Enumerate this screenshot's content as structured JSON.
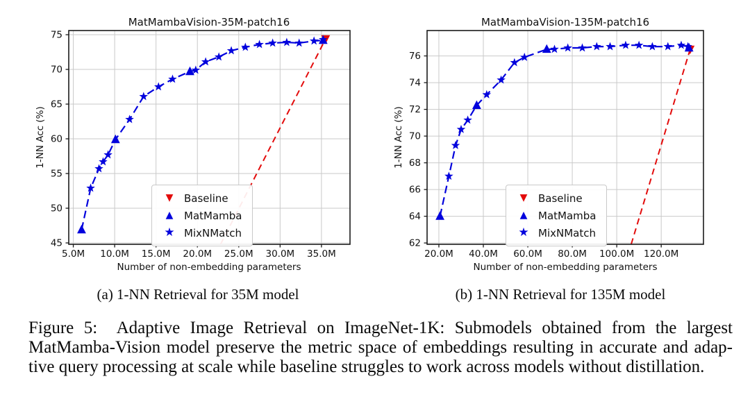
{
  "figure": {
    "subcaption_a": "(a) 1-NN Retrieval for 35M model",
    "subcaption_b": "(b) 1-NN Retrieval for 135M model",
    "caption_lines": [
      "Figure 5:  Adaptive Image Retrieval on ImageNet-1K: Submodels obtained from the largest",
      "MatMamba-Vision model preserve the metric space of embeddings resulting in accurate and adap-",
      "tive query processing at scale while baseline struggles to work across models without distillation."
    ]
  },
  "legend": {
    "items": [
      {
        "label": "Baseline",
        "marker": "triangle-down",
        "color": "red"
      },
      {
        "label": "MatMamba",
        "marker": "triangle-up",
        "color": "blue"
      },
      {
        "label": "MixNMatch",
        "marker": "star",
        "color": "blue"
      }
    ]
  },
  "colors": {
    "blue": "#0202dd",
    "red": "#e30b0b",
    "grid": "#c9c9c9",
    "spine": "#1a1a1a",
    "text": "#111111",
    "legend_border": "#c9c9c9"
  },
  "chart_data": [
    {
      "type": "scatter",
      "title": "MatMambaVision-35M-patch16",
      "xlabel": "Number of non-embedding parameters",
      "ylabel": "1-NN Acc (%)",
      "x_unit": "M",
      "xlim": [
        4.45,
        38.45
      ],
      "ylim": [
        44.8,
        75.6
      ],
      "xticks": [
        5,
        10,
        15,
        20,
        25,
        30,
        35
      ],
      "yticks": [
        45,
        50,
        55,
        60,
        65,
        70,
        75
      ],
      "grid": true,
      "legend_position": "lower-center",
      "series": [
        {
          "name": "Baseline",
          "marker": "triangle-down",
          "color": "red",
          "joined": false,
          "points": [
            [
              35.5,
              74.4
            ]
          ],
          "dash_line_points": [
            [
              22.8,
              44.8
            ],
            [
              35.5,
              74.4
            ]
          ]
        },
        {
          "name": "MatMamba",
          "marker": "triangle-up",
          "color": "blue",
          "joined": true,
          "points": [
            [
              6.0,
              46.9
            ],
            [
              10.1,
              59.9
            ],
            [
              19.1,
              69.7
            ],
            [
              35.2,
              74.2
            ]
          ]
        },
        {
          "name": "MixNMatch",
          "marker": "star",
          "color": "blue",
          "joined": true,
          "points": [
            [
              7.1,
              52.9
            ],
            [
              8.1,
              55.7
            ],
            [
              8.6,
              56.7
            ],
            [
              9.2,
              57.7
            ],
            [
              11.8,
              62.8
            ],
            [
              13.5,
              66.1
            ],
            [
              15.3,
              67.5
            ],
            [
              17.0,
              68.6
            ],
            [
              19.8,
              69.9
            ],
            [
              21.0,
              71.1
            ],
            [
              22.6,
              71.8
            ],
            [
              24.1,
              72.7
            ],
            [
              25.8,
              73.2
            ],
            [
              27.5,
              73.6
            ],
            [
              29.1,
              73.8
            ],
            [
              30.8,
              73.9
            ],
            [
              32.3,
              73.8
            ],
            [
              34.1,
              74.1
            ],
            [
              35.2,
              74.3
            ]
          ]
        }
      ]
    },
    {
      "type": "scatter",
      "title": "MatMambaVision-135M-patch16",
      "xlabel": "Number of non-embedding parameters",
      "ylabel": "1-NN Acc (%)",
      "x_unit": "M",
      "xlim": [
        14.7,
        139.0
      ],
      "ylim": [
        61.9,
        77.9
      ],
      "xticks": [
        20,
        40,
        60,
        80,
        100,
        120
      ],
      "yticks": [
        62,
        64,
        66,
        68,
        70,
        72,
        74,
        76
      ],
      "grid": true,
      "legend_position": "lower-center",
      "series": [
        {
          "name": "Baseline",
          "marker": "triangle-down",
          "color": "red",
          "joined": false,
          "points": [
            [
              133.0,
              76.5
            ]
          ],
          "dash_line_points": [
            [
              106.5,
              61.9
            ],
            [
              133.0,
              76.5
            ]
          ]
        },
        {
          "name": "MatMamba",
          "marker": "triangle-up",
          "color": "blue",
          "joined": true,
          "points": [
            [
              20.5,
              64.0
            ],
            [
              37.0,
              72.3
            ],
            [
              68.5,
              76.5
            ],
            [
              132.5,
              76.6
            ]
          ]
        },
        {
          "name": "MixNMatch",
          "marker": "star",
          "color": "blue",
          "joined": true,
          "points": [
            [
              24.5,
              67.0
            ],
            [
              27.5,
              69.3
            ],
            [
              30.0,
              70.5
            ],
            [
              33.0,
              71.2
            ],
            [
              41.5,
              73.1
            ],
            [
              48.0,
              74.2
            ],
            [
              54.0,
              75.5
            ],
            [
              58.5,
              75.9
            ],
            [
              72.0,
              76.5
            ],
            [
              78.0,
              76.6
            ],
            [
              84.5,
              76.6
            ],
            [
              91.0,
              76.7
            ],
            [
              97.0,
              76.7
            ],
            [
              104.0,
              76.8
            ],
            [
              110.0,
              76.8
            ],
            [
              116.0,
              76.7
            ],
            [
              123.0,
              76.7
            ],
            [
              129.0,
              76.8
            ],
            [
              132.0,
              76.7
            ]
          ]
        }
      ]
    }
  ]
}
